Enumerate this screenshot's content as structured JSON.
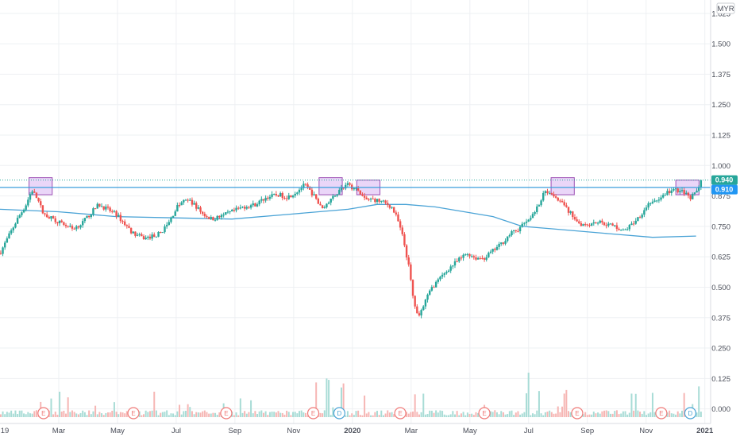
{
  "currency_badge": "MYR",
  "price_badges": [
    {
      "label": "0.940",
      "color": "#26a69a"
    },
    {
      "label": "0.910",
      "color": "#2196f3"
    }
  ],
  "chart_data": {
    "type": "candlestick",
    "ylim": [
      -0.06,
      1.68
    ],
    "y_ticks": [
      "1.625",
      "1.500",
      "1.375",
      "1.250",
      "1.125",
      "1.000",
      "0.875",
      "0.750",
      "0.625",
      "0.500",
      "0.375",
      "0.250",
      "0.125",
      "0.000"
    ],
    "x_ticks": [
      "19",
      "Mar",
      "May",
      "Jul",
      "Sep",
      "Nov",
      "2020",
      "Mar",
      "May",
      "Jul",
      "Sep",
      "Nov",
      "2021"
    ],
    "last_price": 0.94,
    "resistance_level": 0.91,
    "colors": {
      "up": "#26a69a",
      "down": "#ef5350",
      "ma": "#4aa3d6",
      "resistance": "#3b9ddc",
      "highlight_fill": "#e3c8f5",
      "highlight_stroke": "#9c4fb4",
      "grid": "#eef0f3"
    },
    "price_path": [
      {
        "x": 0.0,
        "y": 0.64
      },
      {
        "x": 0.06,
        "y": 0.71
      },
      {
        "x": 0.12,
        "y": 0.78
      },
      {
        "x": 0.18,
        "y": 0.84
      },
      {
        "x": 0.22,
        "y": 0.9
      },
      {
        "x": 0.26,
        "y": 0.86
      },
      {
        "x": 0.3,
        "y": 0.8
      },
      {
        "x": 0.4,
        "y": 0.77
      },
      {
        "x": 0.5,
        "y": 0.74
      },
      {
        "x": 0.56,
        "y": 0.76
      },
      {
        "x": 0.62,
        "y": 0.8
      },
      {
        "x": 0.68,
        "y": 0.84
      },
      {
        "x": 0.74,
        "y": 0.82
      },
      {
        "x": 0.8,
        "y": 0.8
      },
      {
        "x": 0.86,
        "y": 0.76
      },
      {
        "x": 0.92,
        "y": 0.72
      },
      {
        "x": 1.0,
        "y": 0.7
      },
      {
        "x": 1.1,
        "y": 0.72
      },
      {
        "x": 1.16,
        "y": 0.76
      },
      {
        "x": 1.22,
        "y": 0.83
      },
      {
        "x": 1.28,
        "y": 0.86
      },
      {
        "x": 1.34,
        "y": 0.84
      },
      {
        "x": 1.4,
        "y": 0.8
      },
      {
        "x": 1.46,
        "y": 0.78
      },
      {
        "x": 1.52,
        "y": 0.79
      },
      {
        "x": 1.6,
        "y": 0.81
      },
      {
        "x": 1.68,
        "y": 0.83
      },
      {
        "x": 1.76,
        "y": 0.84
      },
      {
        "x": 1.84,
        "y": 0.87
      },
      {
        "x": 1.92,
        "y": 0.88
      },
      {
        "x": 1.98,
        "y": 0.87
      },
      {
        "x": 2.04,
        "y": 0.89
      },
      {
        "x": 2.1,
        "y": 0.92
      },
      {
        "x": 2.16,
        "y": 0.88
      },
      {
        "x": 2.22,
        "y": 0.82
      },
      {
        "x": 2.28,
        "y": 0.86
      },
      {
        "x": 2.34,
        "y": 0.9
      },
      {
        "x": 2.4,
        "y": 0.92
      },
      {
        "x": 2.46,
        "y": 0.9
      },
      {
        "x": 2.52,
        "y": 0.86
      },
      {
        "x": 2.58,
        "y": 0.86
      },
      {
        "x": 2.64,
        "y": 0.85
      },
      {
        "x": 2.7,
        "y": 0.83
      },
      {
        "x": 2.74,
        "y": 0.78
      },
      {
        "x": 2.78,
        "y": 0.7
      },
      {
        "x": 2.82,
        "y": 0.58
      },
      {
        "x": 2.85,
        "y": 0.45
      },
      {
        "x": 2.88,
        "y": 0.38
      },
      {
        "x": 2.92,
        "y": 0.43
      },
      {
        "x": 2.98,
        "y": 0.5
      },
      {
        "x": 3.04,
        "y": 0.54
      },
      {
        "x": 3.1,
        "y": 0.58
      },
      {
        "x": 3.16,
        "y": 0.61
      },
      {
        "x": 3.22,
        "y": 0.64
      },
      {
        "x": 3.28,
        "y": 0.62
      },
      {
        "x": 3.34,
        "y": 0.62
      },
      {
        "x": 3.4,
        "y": 0.65
      },
      {
        "x": 3.46,
        "y": 0.68
      },
      {
        "x": 3.52,
        "y": 0.72
      },
      {
        "x": 3.58,
        "y": 0.74
      },
      {
        "x": 3.64,
        "y": 0.78
      },
      {
        "x": 3.7,
        "y": 0.82
      },
      {
        "x": 3.76,
        "y": 0.9
      },
      {
        "x": 3.82,
        "y": 0.88
      },
      {
        "x": 3.88,
        "y": 0.84
      },
      {
        "x": 3.94,
        "y": 0.8
      },
      {
        "x": 4.0,
        "y": 0.76
      },
      {
        "x": 4.06,
        "y": 0.76
      },
      {
        "x": 4.12,
        "y": 0.77
      },
      {
        "x": 4.18,
        "y": 0.76
      },
      {
        "x": 4.24,
        "y": 0.75
      },
      {
        "x": 4.3,
        "y": 0.73
      },
      {
        "x": 4.36,
        "y": 0.76
      },
      {
        "x": 4.42,
        "y": 0.8
      },
      {
        "x": 4.48,
        "y": 0.85
      },
      {
        "x": 4.54,
        "y": 0.86
      },
      {
        "x": 4.6,
        "y": 0.89
      },
      {
        "x": 4.66,
        "y": 0.9
      },
      {
        "x": 4.72,
        "y": 0.89
      },
      {
        "x": 4.76,
        "y": 0.86
      },
      {
        "x": 4.8,
        "y": 0.9
      },
      {
        "x": 4.84,
        "y": 0.94
      }
    ],
    "moving_average": [
      {
        "x": 0.0,
        "y": 0.82
      },
      {
        "x": 0.4,
        "y": 0.81
      },
      {
        "x": 0.8,
        "y": 0.79
      },
      {
        "x": 1.2,
        "y": 0.785
      },
      {
        "x": 1.6,
        "y": 0.78
      },
      {
        "x": 2.0,
        "y": 0.8
      },
      {
        "x": 2.4,
        "y": 0.82
      },
      {
        "x": 2.6,
        "y": 0.84
      },
      {
        "x": 2.8,
        "y": 0.84
      },
      {
        "x": 3.0,
        "y": 0.83
      },
      {
        "x": 3.4,
        "y": 0.79
      },
      {
        "x": 3.6,
        "y": 0.75
      },
      {
        "x": 3.8,
        "y": 0.74
      },
      {
        "x": 4.2,
        "y": 0.72
      },
      {
        "x": 4.5,
        "y": 0.705
      },
      {
        "x": 4.8,
        "y": 0.71
      }
    ],
    "highlight_boxes": [
      {
        "x0": 0.2,
        "x1": 0.36,
        "y0": 0.88,
        "y1": 0.95
      },
      {
        "x0": 2.2,
        "x1": 2.36,
        "y0": 0.88,
        "y1": 0.95
      },
      {
        "x0": 2.46,
        "x1": 2.62,
        "y0": 0.88,
        "y1": 0.94
      },
      {
        "x0": 3.8,
        "x1": 3.96,
        "y0": 0.88,
        "y1": 0.95
      },
      {
        "x0": 4.66,
        "x1": 4.82,
        "y0": 0.88,
        "y1": 0.94
      }
    ],
    "volume_spikes": [
      {
        "x": 0.28,
        "v": 0.18
      },
      {
        "x": 1.3,
        "v": 0.16
      },
      {
        "x": 2.18,
        "v": 0.55
      },
      {
        "x": 2.26,
        "v": 0.62
      },
      {
        "x": 2.36,
        "v": 0.45
      },
      {
        "x": 2.86,
        "v": 0.35
      },
      {
        "x": 2.92,
        "v": 0.42
      },
      {
        "x": 3.64,
        "v": 0.58
      },
      {
        "x": 3.9,
        "v": 0.48
      },
      {
        "x": 4.5,
        "v": 0.82
      },
      {
        "x": 4.82,
        "v": 0.4
      }
    ],
    "event_markers": [
      {
        "label": "E",
        "x": 0.3
      },
      {
        "label": "E",
        "x": 0.92
      },
      {
        "label": "E",
        "x": 1.56
      },
      {
        "label": "E",
        "x": 2.16
      },
      {
        "label": "D",
        "x": 2.34
      },
      {
        "label": "E",
        "x": 2.76
      },
      {
        "label": "E",
        "x": 3.34
      },
      {
        "label": "E",
        "x": 3.98
      },
      {
        "label": "E",
        "x": 4.56
      },
      {
        "label": "D",
        "x": 4.76
      }
    ]
  }
}
